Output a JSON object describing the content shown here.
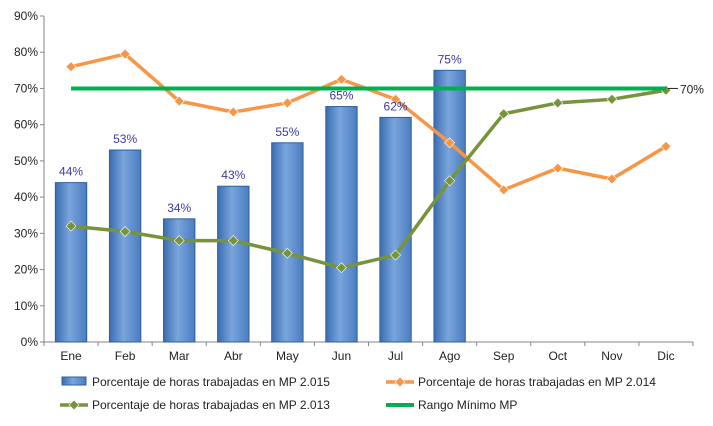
{
  "chart_data": {
    "type": "bar",
    "title": "",
    "xlabel": "",
    "ylabel": "",
    "ylim": [
      0,
      90
    ],
    "grid": false,
    "legend_position": "bottom",
    "categories": [
      "Ene",
      "Feb",
      "Mar",
      "Abr",
      "May",
      "Jun",
      "Jul",
      "Ago",
      "Sep",
      "Oct",
      "Nov",
      "Dic"
    ],
    "y_ticks": [
      "0%",
      "10%",
      "20%",
      "30%",
      "40%",
      "50%",
      "60%",
      "70%",
      "80%",
      "90%"
    ],
    "series": [
      {
        "name": "Porcentaje de horas trabajadas en MP 2.015",
        "type": "bar",
        "color": "#4f81bd",
        "values": [
          44,
          53,
          34,
          43,
          55,
          65,
          62,
          75,
          null,
          null,
          null,
          null
        ],
        "labels": [
          "44%",
          "53%",
          "34%",
          "43%",
          "55%",
          "65%",
          "62%",
          "75%",
          "",
          "",
          "",
          ""
        ]
      },
      {
        "name": "Porcentaje de horas trabajadas en MP 2.014",
        "type": "line",
        "color": "#f79646",
        "marker": "diamond",
        "values": [
          76,
          79.5,
          66.5,
          63.5,
          66,
          72.5,
          67,
          55,
          42,
          48,
          45,
          54
        ]
      },
      {
        "name": "Porcentaje de horas trabajadas en MP 2.013",
        "type": "line",
        "color": "#77933c",
        "marker": "diamond",
        "values": [
          32,
          30.5,
          28,
          28,
          24.5,
          20.5,
          24,
          44.5,
          63,
          66,
          67,
          69.5
        ]
      },
      {
        "name": "Rango Mínimo MP",
        "type": "line",
        "color": "#00b050",
        "values": [
          70,
          70,
          70,
          70,
          70,
          70,
          70,
          70,
          70,
          70,
          70,
          70
        ],
        "end_label": "70%"
      }
    ]
  }
}
